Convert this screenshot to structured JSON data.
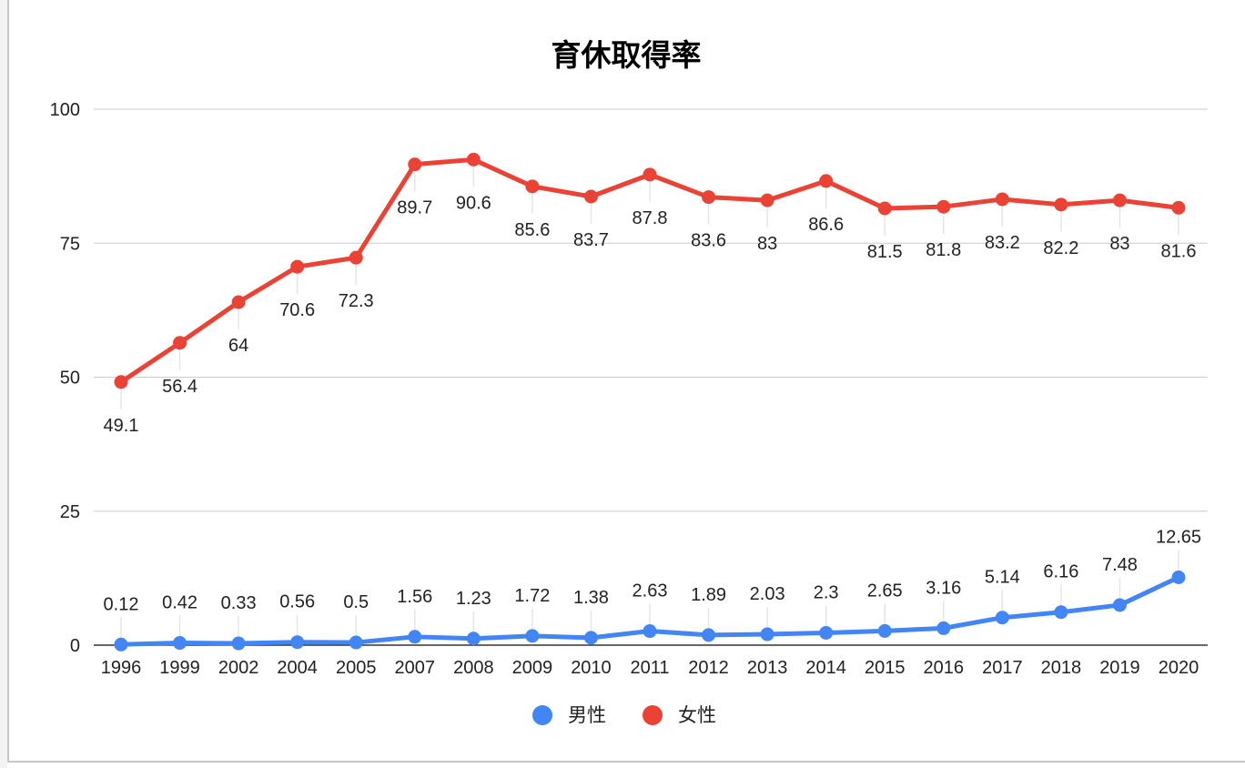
{
  "chart_data": {
    "type": "line",
    "title": "育休取得率",
    "xlabel": "",
    "ylabel": "",
    "ylim": [
      0,
      100
    ],
    "yticks": [
      0,
      25,
      50,
      75,
      100
    ],
    "grid": true,
    "legend_position": "bottom",
    "categories": [
      "1996",
      "1999",
      "2002",
      "2004",
      "2005",
      "2007",
      "2008",
      "2009",
      "2010",
      "2011",
      "2012",
      "2013",
      "2014",
      "2015",
      "2016",
      "2017",
      "2018",
      "2019",
      "2020"
    ],
    "series": [
      {
        "name": "男性",
        "color": "#4285f4",
        "label_position": "above",
        "values": [
          0.12,
          0.42,
          0.33,
          0.56,
          0.5,
          1.56,
          1.23,
          1.72,
          1.38,
          2.63,
          1.89,
          2.03,
          2.3,
          2.65,
          3.16,
          5.14,
          6.16,
          7.48,
          12.65
        ]
      },
      {
        "name": "女性",
        "color": "#ea4335",
        "label_position": "below",
        "values": [
          49.1,
          56.4,
          64,
          70.6,
          72.3,
          89.7,
          90.6,
          85.6,
          83.7,
          87.8,
          83.6,
          83,
          86.6,
          81.5,
          81.8,
          83.2,
          82.2,
          83,
          81.6
        ]
      }
    ]
  }
}
